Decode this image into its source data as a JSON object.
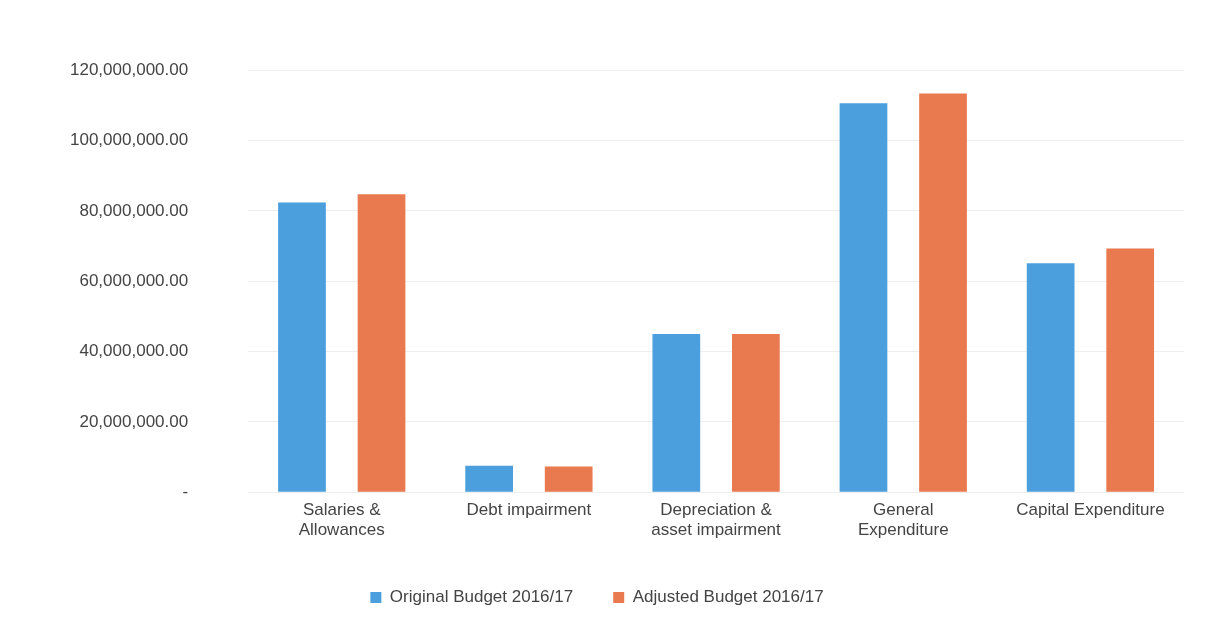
{
  "chart_data": {
    "type": "bar",
    "categories": [
      "Salaries & Allowances",
      "Debt impairment",
      "Depreciation & asset impairment",
      "General Expenditure",
      "Capital Expenditure"
    ],
    "series": [
      {
        "name": "Original Budget 2016/17",
        "color": "#4a9fdc",
        "values": [
          82400000,
          7500000,
          45000000,
          110600000,
          65100000
        ]
      },
      {
        "name": "Adjusted Budget 2016/17",
        "color": "#e97a50",
        "values": [
          84700000,
          7300000,
          45000000,
          113400000,
          69300000
        ]
      }
    ],
    "ylim": [
      0,
      120000000
    ],
    "yticks": [
      {
        "value": 0,
        "label": "-"
      },
      {
        "value": 20000000,
        "label": "20,000,000.00"
      },
      {
        "value": 40000000,
        "label": "40,000,000.00"
      },
      {
        "value": 60000000,
        "label": "60,000,000.00"
      },
      {
        "value": 80000000,
        "label": "80,000,000.00"
      },
      {
        "value": 100000000,
        "label": "100,000,000.00"
      },
      {
        "value": 120000000,
        "label": "120,000,000.00"
      }
    ],
    "grid": "y",
    "legend": "bottom"
  }
}
